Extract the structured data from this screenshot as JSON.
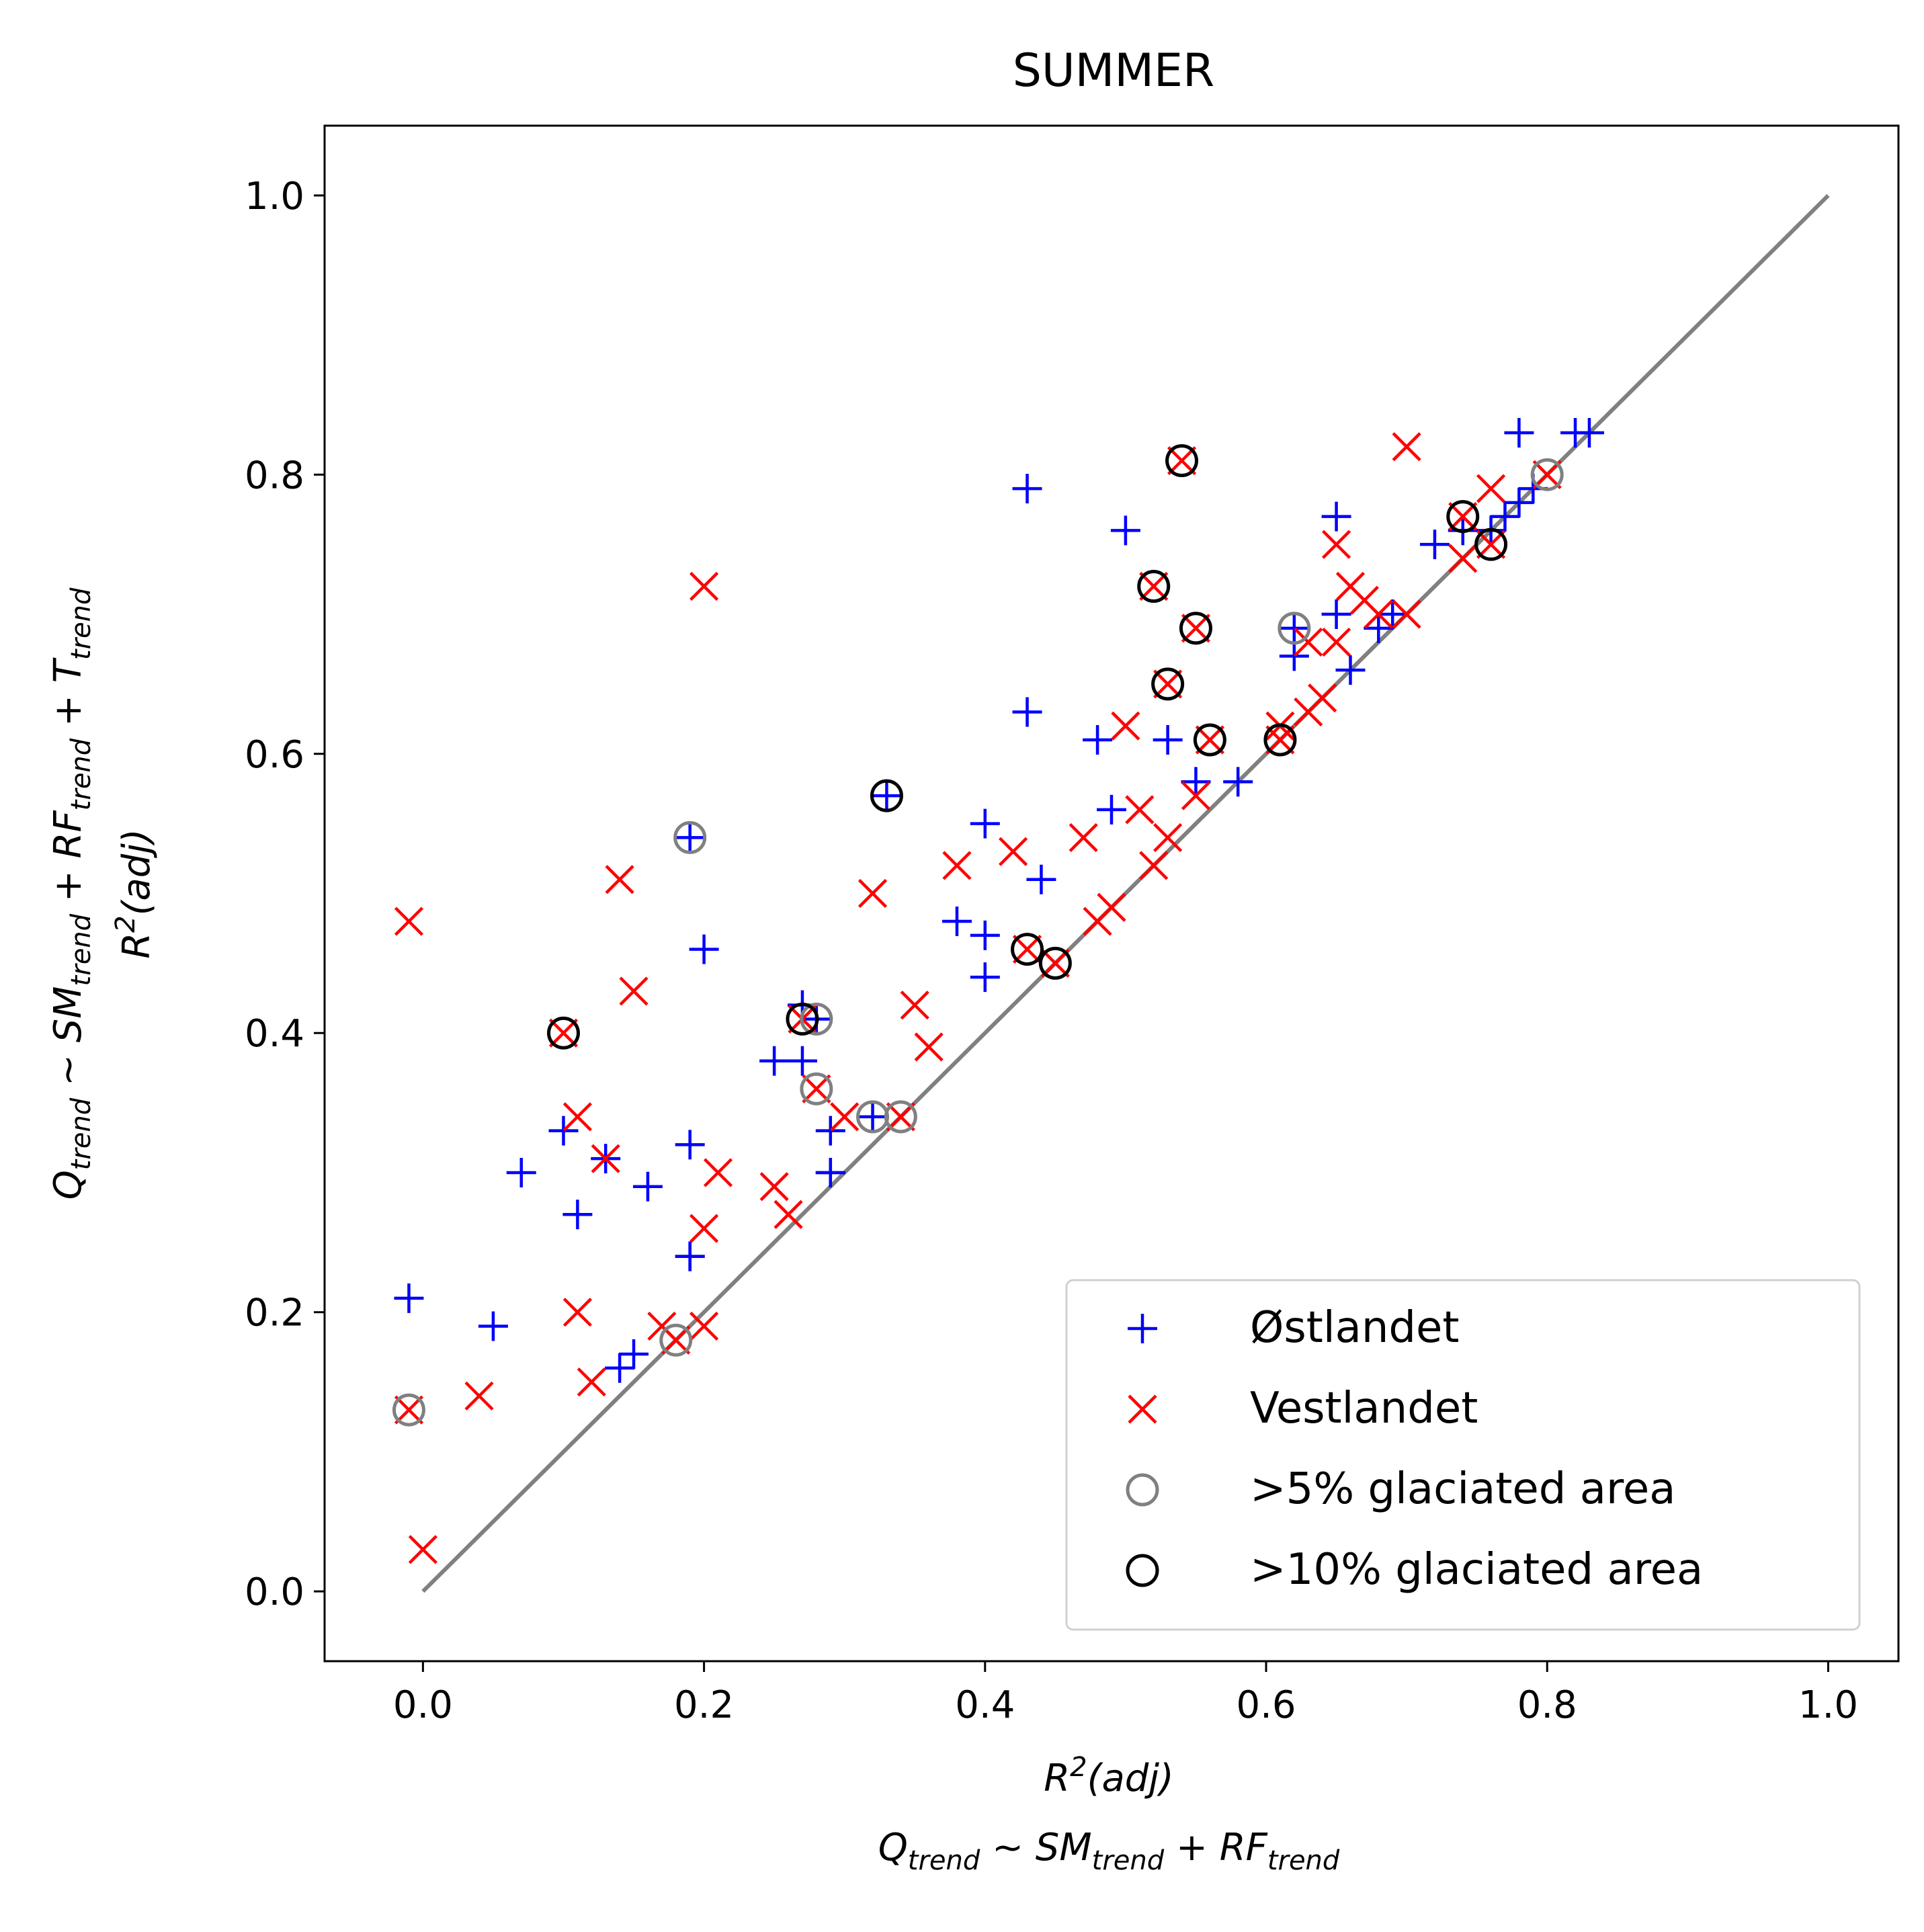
{
  "chart_data": {
    "type": "scatter",
    "title": "SUMMER",
    "xlabel": "R²(adj) Q_trend ~ SM_trend + RF_trend",
    "ylabel": "Q_trend ~ SM_trend + RF_trend + T_trend R²(adj)",
    "xlim": [
      -0.07,
      1.05
    ],
    "ylim": [
      -0.05,
      1.05
    ],
    "x_ticks": [
      "0.0",
      "0.2",
      "0.4",
      "0.6",
      "0.8",
      "1.0"
    ],
    "y_ticks": [
      "0.0",
      "0.2",
      "0.4",
      "0.6",
      "0.8",
      "1.0"
    ],
    "grid": false,
    "legend_position": "lower-right",
    "reference_line": {
      "x": [
        0,
        1
      ],
      "y": [
        0,
        1
      ],
      "color": "#808080"
    },
    "series": [
      {
        "name": "Østlandet",
        "marker": "plus",
        "color": "#0000ff",
        "points": [
          [
            -0.01,
            0.21
          ],
          [
            0.05,
            0.19
          ],
          [
            0.07,
            0.3
          ],
          [
            0.1,
            0.33
          ],
          [
            0.11,
            0.27
          ],
          [
            0.13,
            0.31
          ],
          [
            0.14,
            0.16
          ],
          [
            0.15,
            0.17
          ],
          [
            0.16,
            0.29
          ],
          [
            0.19,
            0.24
          ],
          [
            0.19,
            0.24
          ],
          [
            0.19,
            0.32
          ],
          [
            0.19,
            0.54
          ],
          [
            0.2,
            0.46
          ],
          [
            0.25,
            0.38
          ],
          [
            0.27,
            0.38
          ],
          [
            0.27,
            0.42
          ],
          [
            0.28,
            0.41
          ],
          [
            0.29,
            0.33
          ],
          [
            0.29,
            0.3
          ],
          [
            0.29,
            0.3
          ],
          [
            0.32,
            0.34
          ],
          [
            0.33,
            0.57
          ],
          [
            0.38,
            0.48
          ],
          [
            0.4,
            0.47
          ],
          [
            0.4,
            0.44
          ],
          [
            0.4,
            0.55
          ],
          [
            0.43,
            0.79
          ],
          [
            0.43,
            0.63
          ],
          [
            0.44,
            0.51
          ],
          [
            0.48,
            0.61
          ],
          [
            0.49,
            0.56
          ],
          [
            0.5,
            0.76
          ],
          [
            0.53,
            0.61
          ],
          [
            0.55,
            0.58
          ],
          [
            0.58,
            0.58
          ],
          [
            0.62,
            0.69
          ],
          [
            0.62,
            0.67
          ],
          [
            0.65,
            0.77
          ],
          [
            0.65,
            0.7
          ],
          [
            0.66,
            0.66
          ],
          [
            0.68,
            0.69
          ],
          [
            0.69,
            0.7
          ],
          [
            0.72,
            0.75
          ],
          [
            0.74,
            0.76
          ],
          [
            0.76,
            0.76
          ],
          [
            0.77,
            0.77
          ],
          [
            0.78,
            0.83
          ],
          [
            0.78,
            0.78
          ],
          [
            0.79,
            0.79
          ],
          [
            0.82,
            0.83
          ],
          [
            0.83,
            0.83
          ]
        ]
      },
      {
        "name": "Vestlandet",
        "marker": "x",
        "color": "#ff0000",
        "points": [
          [
            -0.01,
            0.48
          ],
          [
            -0.01,
            0.13
          ],
          [
            0.0,
            0.03
          ],
          [
            0.04,
            0.14
          ],
          [
            0.1,
            0.4
          ],
          [
            0.11,
            0.34
          ],
          [
            0.11,
            0.2
          ],
          [
            0.12,
            0.15
          ],
          [
            0.13,
            0.31
          ],
          [
            0.14,
            0.51
          ],
          [
            0.15,
            0.43
          ],
          [
            0.17,
            0.19
          ],
          [
            0.18,
            0.18
          ],
          [
            0.2,
            0.72
          ],
          [
            0.2,
            0.26
          ],
          [
            0.2,
            0.19
          ],
          [
            0.21,
            0.3
          ],
          [
            0.25,
            0.29
          ],
          [
            0.26,
            0.27
          ],
          [
            0.27,
            0.41
          ],
          [
            0.28,
            0.36
          ],
          [
            0.3,
            0.34
          ],
          [
            0.32,
            0.5
          ],
          [
            0.34,
            0.34
          ],
          [
            0.35,
            0.42
          ],
          [
            0.36,
            0.39
          ],
          [
            0.38,
            0.52
          ],
          [
            0.42,
            0.53
          ],
          [
            0.43,
            0.46
          ],
          [
            0.45,
            0.45
          ],
          [
            0.47,
            0.54
          ],
          [
            0.48,
            0.48
          ],
          [
            0.49,
            0.49
          ],
          [
            0.5,
            0.62
          ],
          [
            0.51,
            0.56
          ],
          [
            0.52,
            0.72
          ],
          [
            0.52,
            0.52
          ],
          [
            0.53,
            0.54
          ],
          [
            0.53,
            0.65
          ],
          [
            0.54,
            0.81
          ],
          [
            0.55,
            0.69
          ],
          [
            0.55,
            0.57
          ],
          [
            0.56,
            0.61
          ],
          [
            0.61,
            0.61
          ],
          [
            0.61,
            0.62
          ],
          [
            0.63,
            0.63
          ],
          [
            0.63,
            0.68
          ],
          [
            0.64,
            0.64
          ],
          [
            0.65,
            0.75
          ],
          [
            0.65,
            0.68
          ],
          [
            0.66,
            0.72
          ],
          [
            0.67,
            0.71
          ],
          [
            0.68,
            0.7
          ],
          [
            0.7,
            0.82
          ],
          [
            0.7,
            0.7
          ],
          [
            0.74,
            0.74
          ],
          [
            0.74,
            0.77
          ],
          [
            0.76,
            0.75
          ],
          [
            0.76,
            0.79
          ],
          [
            0.8,
            0.8
          ]
        ]
      },
      {
        "name": ">5% glaciated area",
        "marker": "circle",
        "color": "#808080",
        "points": [
          [
            -0.01,
            0.13
          ],
          [
            0.18,
            0.18
          ],
          [
            0.19,
            0.54
          ],
          [
            0.28,
            0.36
          ],
          [
            0.28,
            0.41
          ],
          [
            0.32,
            0.34
          ],
          [
            0.34,
            0.34
          ],
          [
            0.62,
            0.69
          ],
          [
            0.8,
            0.8
          ]
        ]
      },
      {
        "name": ">10% glaciated area",
        "marker": "circle",
        "color": "#000000",
        "points": [
          [
            0.1,
            0.4
          ],
          [
            0.27,
            0.41
          ],
          [
            0.33,
            0.57
          ],
          [
            0.43,
            0.46
          ],
          [
            0.45,
            0.45
          ],
          [
            0.52,
            0.72
          ],
          [
            0.53,
            0.65
          ],
          [
            0.54,
            0.81
          ],
          [
            0.55,
            0.69
          ],
          [
            0.56,
            0.61
          ],
          [
            0.61,
            0.61
          ],
          [
            0.74,
            0.77
          ],
          [
            0.76,
            0.75
          ]
        ]
      }
    ]
  }
}
